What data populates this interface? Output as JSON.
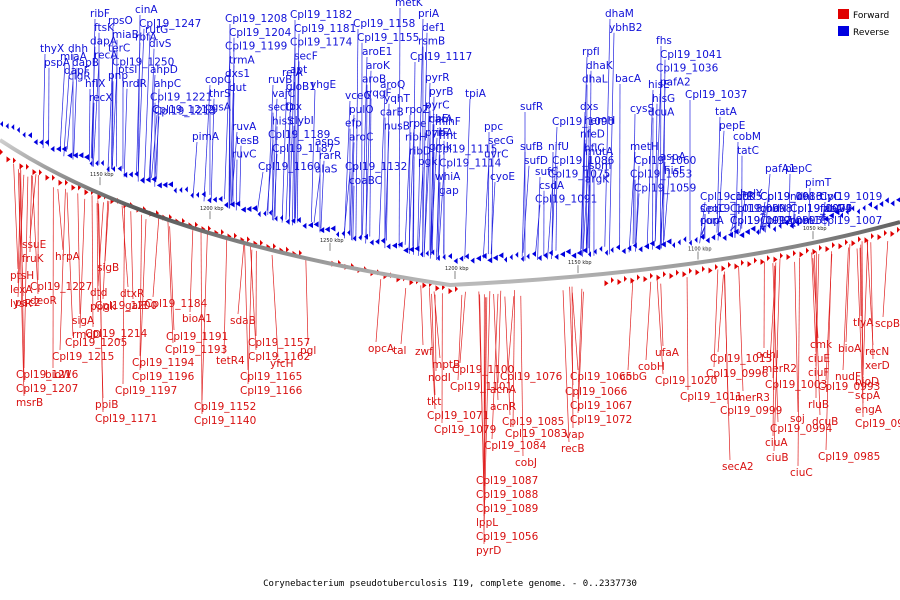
{
  "caption": "Corynebacterium pseudotuberculosis I19, complete genome. - 0..2337730",
  "legend": [
    {
      "label": "Forward",
      "color": "#e00000"
    },
    {
      "label": "Reverse",
      "color": "#0000e0"
    }
  ],
  "ticks": [
    "1150 kbp",
    "1200 kbp",
    "1250 kbp",
    "1200 kbp",
    "1150 kbp",
    "1100 kbp",
    "1050 kbp"
  ],
  "reverse_labels": [
    "ribF",
    "ftsK",
    "dapA",
    "recA",
    "rpsO",
    "miaB",
    "terC",
    "Cpl19_1250",
    "pnp",
    "cinA",
    "Cpl19_1247",
    "rbfA",
    "dhh",
    "dapB",
    "clgR",
    "thyX",
    "pspA",
    "miaA",
    "dapF",
    "hflX",
    "recX",
    "rutG",
    "divS",
    "ptsI",
    "nrdR",
    "ahpD",
    "ahpC",
    "Cpl19_1221",
    "Cpl19_1213",
    "Cpl19_1212",
    "Cpl19_1208",
    "Cpl19_1204",
    "Cpl19_1199",
    "trmA",
    "dxs1",
    "dut",
    "copC",
    "thrS",
    "pgsA",
    "pimA",
    "ruvA",
    "tesB",
    "ruvC",
    "ruvB",
    "vajC",
    "secD",
    "hisS",
    "Cpl19_1189",
    "Cpl19_1187",
    "Cpl19_1182",
    "Cpl19_1181",
    "Cpl19_1174",
    "secF",
    "apt",
    "relA",
    "gloB1",
    "tpx",
    "clybI",
    "Cpl19_1160",
    "yhgE",
    "aspS",
    "rarR",
    "alaS",
    "Cpl19_1158",
    "Cpl19_1155",
    "aroE1",
    "aroK",
    "aroB",
    "yqgF",
    "vceG",
    "pulO",
    "efp",
    "aroC",
    "aroQ",
    "yqhT",
    "carB",
    "nusB",
    "Cpl19_1132",
    "coaBC",
    "metK",
    "priA",
    "def1",
    "rsmB",
    "Cpl19_1117",
    "pyrR",
    "pyrB",
    "pyrC",
    "carA",
    "pyrF",
    "gmk",
    "rpoZ",
    "rpe",
    "ribH",
    "ribD",
    "ribE",
    "ribA",
    "mihF",
    "fmt",
    "Cpl19_1115",
    "Cpl19_1114",
    "whiA",
    "gap",
    "pgk",
    "tpiA",
    "ppc",
    "secG",
    "uvrC",
    "cyoE",
    "sufR",
    "sufB",
    "sufD",
    "sufC",
    "csdA",
    "Cpl19_1091",
    "Cpl19_1090",
    "nifU",
    "Cpl19_1086",
    "Cpl19_1075",
    "dxs",
    "hemH",
    "nfeD",
    "hflC",
    "mutA",
    "sbm",
    "argK",
    "rpfI",
    "dhaK",
    "dhaL",
    "dhaM",
    "ybhB2",
    "bacA",
    "cysS",
    "metH",
    "Cpl19_1060",
    "Cpl19_1053",
    "Cpl19_1059",
    "hisE",
    "hisG",
    "dcuA",
    "aspA",
    "hisF",
    "fhs",
    "Cpl19_1041",
    "Cpl19_1036",
    "pafA2",
    "Cpl19_1037",
    "tatA",
    "pepE",
    "cobM",
    "tatC",
    "pafA1",
    "helY",
    "pepC",
    "pimT",
    "fabG4",
    "pup",
    "cobK",
    "cobN",
    "cobL",
    "Cpl19_1019",
    "Cpl19_1018",
    "Cpl19_1017",
    "Cpl19_1016",
    "Cpl19_1009",
    "Cpl19_1007",
    "Cpl19_1005",
    "Cpl19_0998",
    "Cpl19_0995",
    "ndh",
    "fxsA",
    "corA",
    "cutE",
    "gnd",
    "ppm1",
    "tlyC",
    "seqC",
    "Cpl19_0992",
    "Cpl19_0983",
    "Cpl19_0975"
  ],
  "forward_labels": [
    "ssuE",
    "fruK",
    "hrpA",
    "ptsH",
    "lexA",
    "lysR",
    "Cpl19_1227",
    "deoR",
    "pac2",
    "sigB",
    "dtd",
    "ppgk",
    "dtxR",
    "sigA",
    "rmdD",
    "Cpl19_1200",
    "galE",
    "Cpl19_1205",
    "Cpl19_1214",
    "Cpl19_1215",
    "Cpl19_1216",
    "Cpl19_1207",
    "msrB",
    "bioW",
    "Cpl19_1184",
    "bioA1",
    "Cpl19_1191",
    "Cpl19_1193",
    "Cpl19_1194",
    "Cpl19_1196",
    "Cpl19_1197",
    "ppiB",
    "Cpl19_1171",
    "tetR4",
    "sdaB",
    "Cpl19_1157",
    "Cpl19_1162",
    "Cpl19_1165",
    "Cpl19_1166",
    "Cpl19_1152",
    "Cpl19_1140",
    "yfcH",
    "pgl",
    "opcA",
    "tal",
    "zwf",
    "mptB",
    "nodI",
    "Cpl19_1100",
    "Cpl19_1101",
    "tkt",
    "Cpl19_1071",
    "Cpl19_1079",
    "Cpl19_1076",
    "acnA",
    "acnR",
    "Cpl19_1085",
    "Cpl19_1083",
    "Cpl19_1084",
    "Cpl19_1087",
    "Cpl19_1088",
    "Cpl19_1089",
    "lppL",
    "Cpl19_1056",
    "pyrD",
    "Cpl19_1065",
    "Cpl19_1066",
    "Cpl19_1067",
    "Cpl19_1072",
    "vap",
    "recB",
    "cobJ",
    "cobG",
    "cobH",
    "ufaA",
    "Cpl19_1020",
    "Cpl19_1011",
    "Cpl19_1013",
    "Cpl19_0996",
    "Cpl19_0999",
    "secA2",
    "odhI",
    "merR2",
    "Cpl19_1003",
    "merR3",
    "Cpl19_0994",
    "ciuA",
    "ciuB",
    "ciuC",
    "cmk",
    "ciuE",
    "ciuF",
    "Cpl19_0993",
    "rluB",
    "dcuB",
    "soj",
    "bioA",
    "nudF",
    "tlyA",
    "recN",
    "xerD",
    "scpB",
    "bioD",
    "scpA",
    "engA",
    "Cpl19_0984",
    "Cpl19_0985"
  ]
}
